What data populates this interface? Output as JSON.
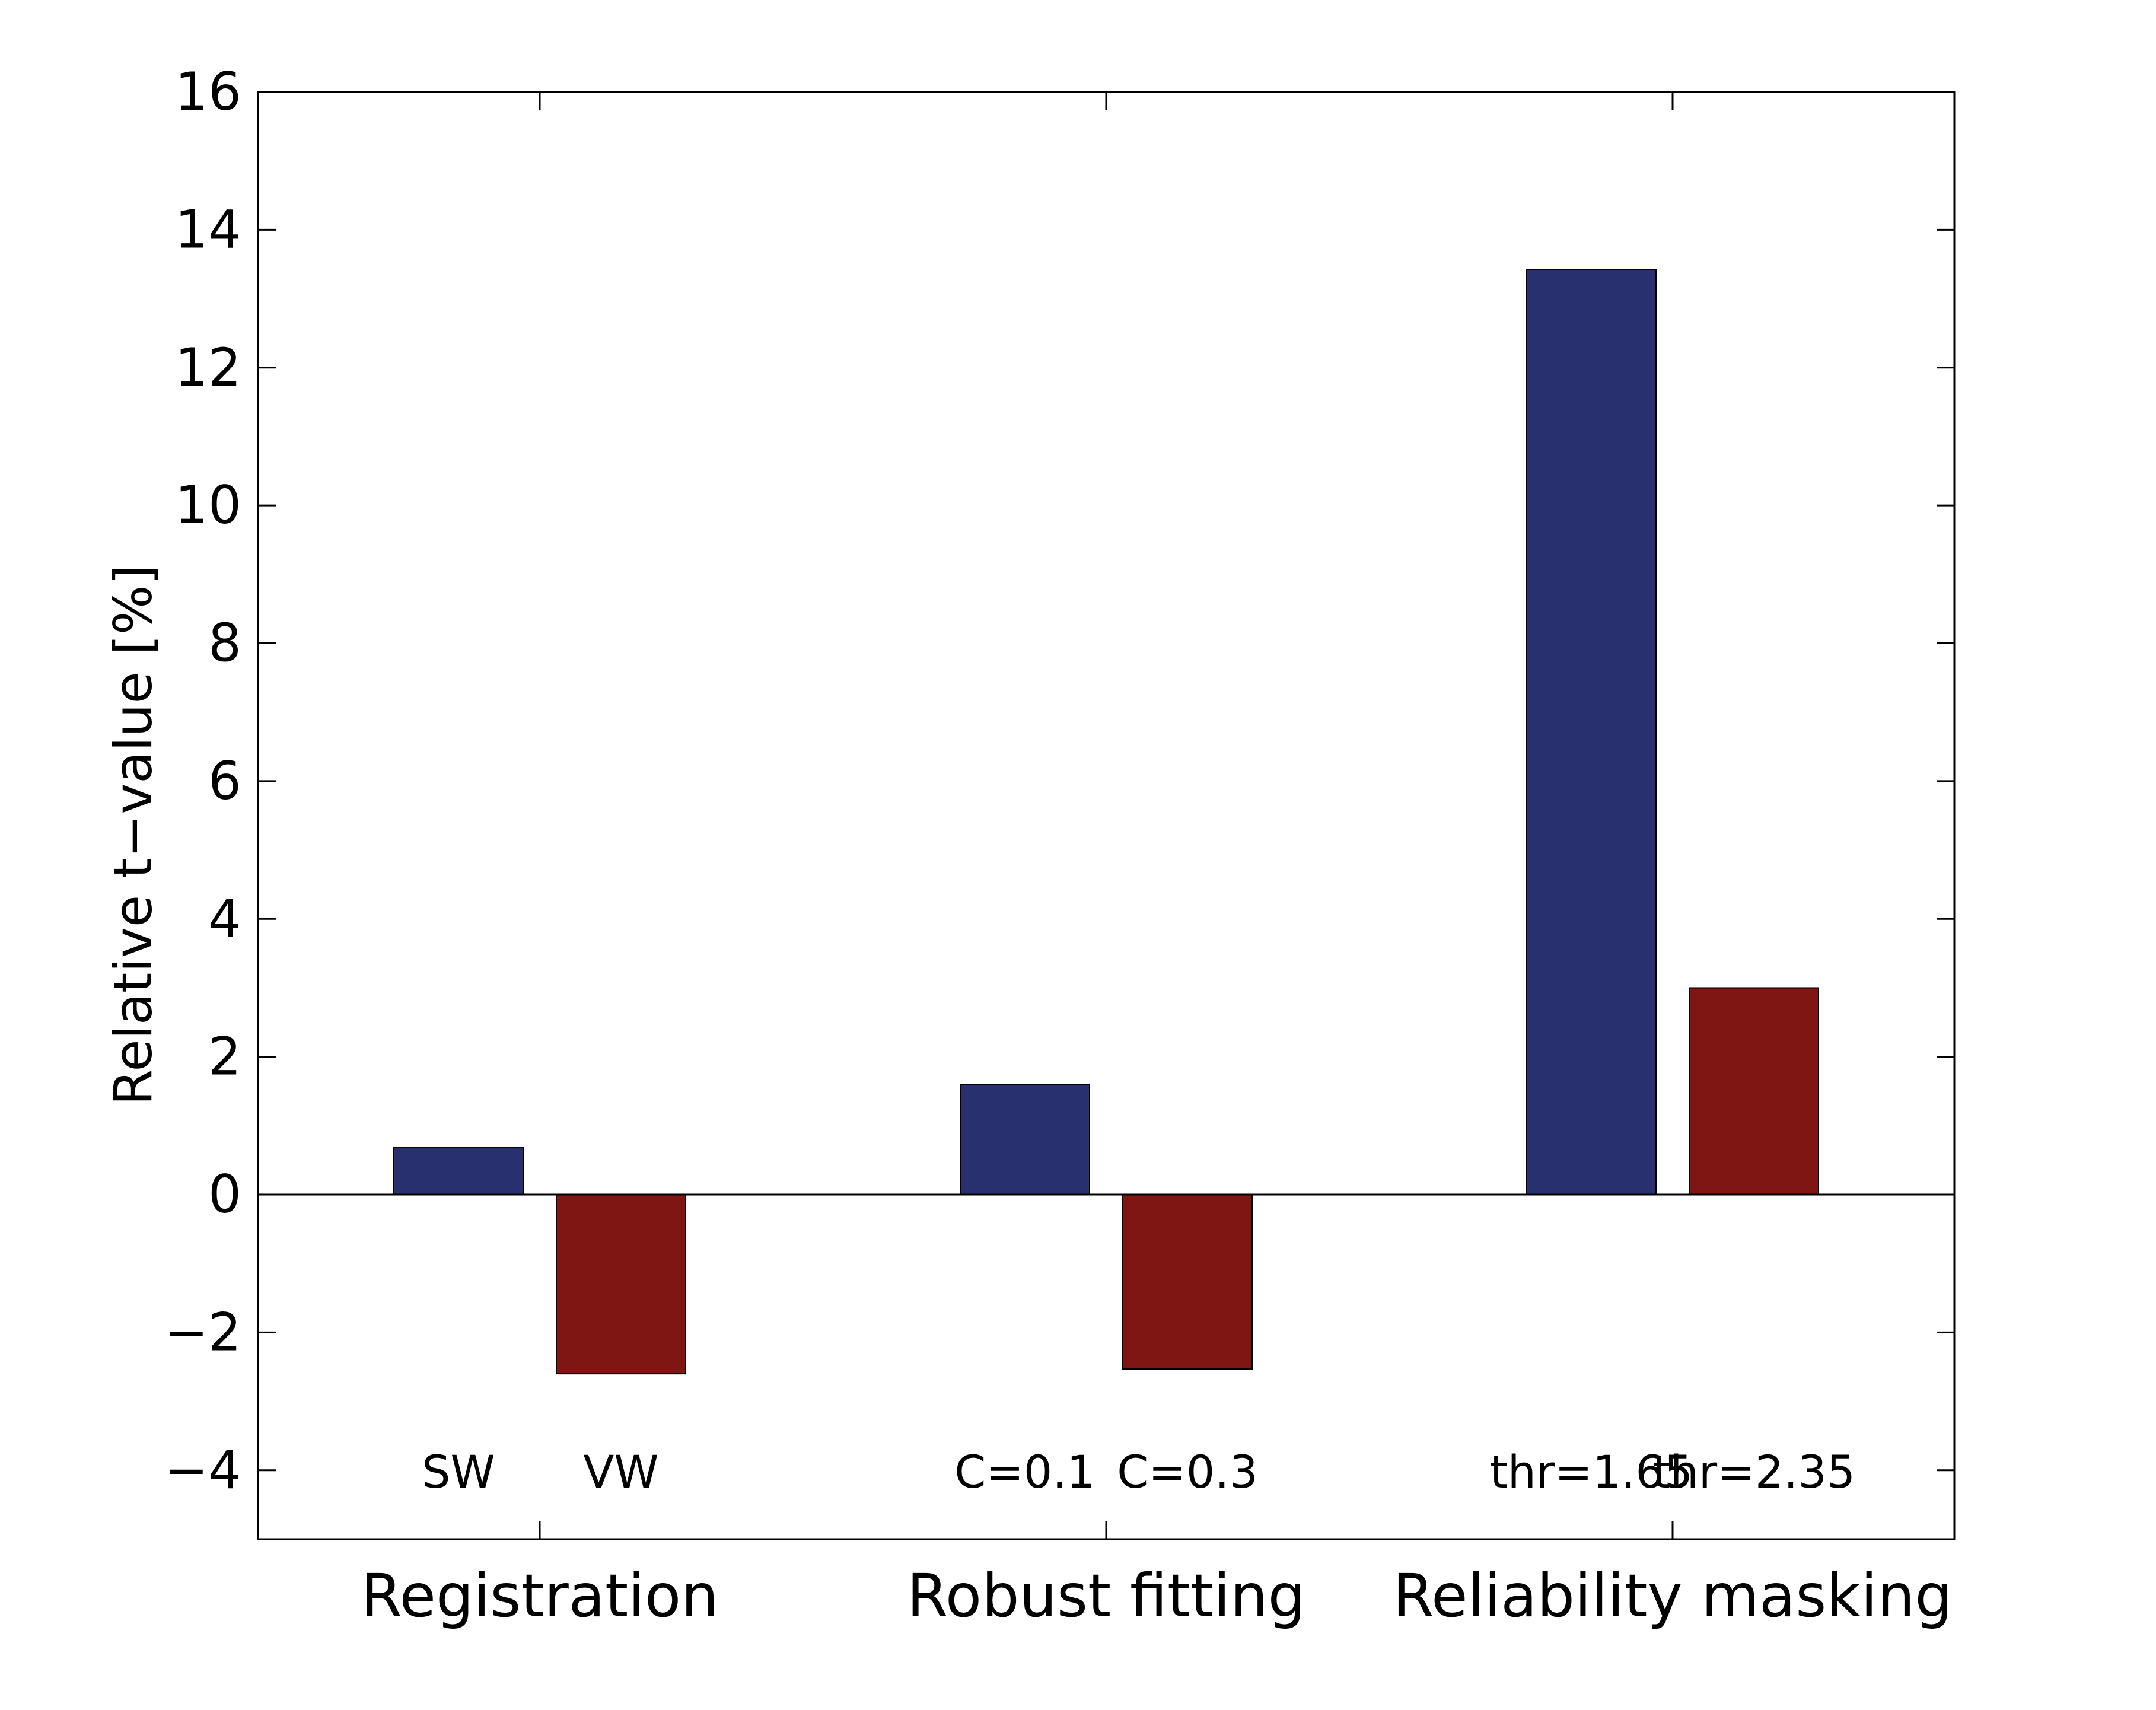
{
  "chart_data": {
    "type": "bar",
    "ylabel": "Relative t−value [%]",
    "ylim": [
      -5,
      16
    ],
    "yticks": [
      16,
      14,
      12,
      10,
      8,
      6,
      4,
      2,
      0,
      -2,
      -4
    ],
    "ytick_labels": [
      "16",
      "14",
      "12",
      "10",
      "8",
      "6",
      "4",
      "2",
      "0",
      "−2",
      "−4"
    ],
    "grid": false,
    "groups": [
      "Registration",
      "Robust fitting",
      "Reliability masking"
    ],
    "bars": [
      {
        "label": "SW",
        "group": 0,
        "slot": 0,
        "value": 0.68,
        "color": "#283070"
      },
      {
        "label": "VW",
        "group": 0,
        "slot": 1,
        "value": -2.6,
        "color": "#801614"
      },
      {
        "label": "C=0.1",
        "group": 1,
        "slot": 0,
        "value": 1.6,
        "color": "#283070"
      },
      {
        "label": "C=0.3",
        "group": 1,
        "slot": 1,
        "value": -2.53,
        "color": "#801614"
      },
      {
        "label": "thr=1.65",
        "group": 2,
        "slot": 0,
        "value": 13.42,
        "color": "#283070"
      },
      {
        "label": "thr=2.35",
        "group": 2,
        "slot": 1,
        "value": 3.0,
        "color": "#801614"
      }
    ]
  }
}
